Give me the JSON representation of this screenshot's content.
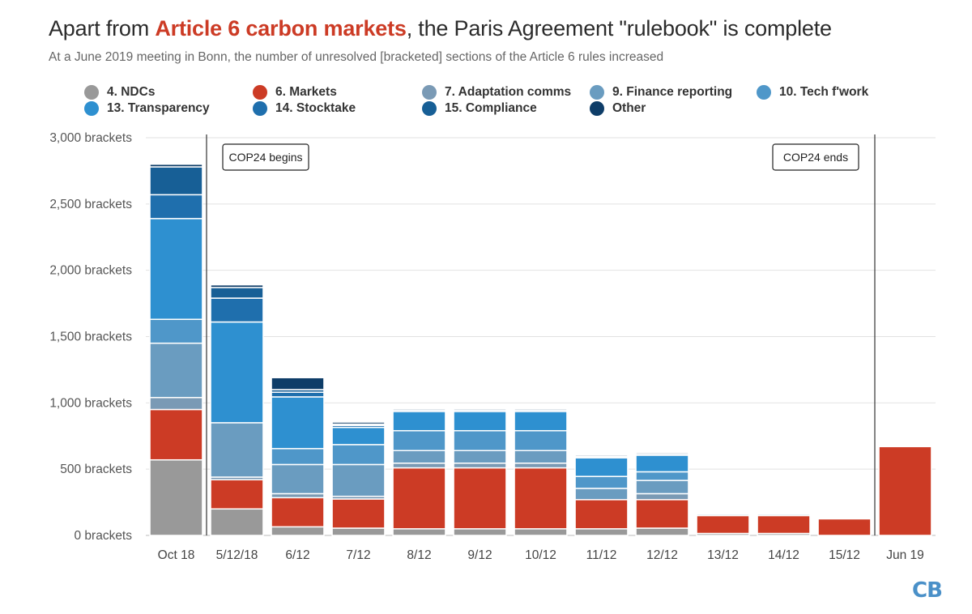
{
  "title": {
    "prefix": "Apart from ",
    "highlight": "Article 6 carbon markets",
    "suffix": ", the Paris Agreement \"rulebook\" is complete"
  },
  "subtitle": "At a June 2019 meeting in Bonn, the number of unresolved [bracketed] sections of the Article 6 rules increased",
  "logo": "CB",
  "chart_data": {
    "type": "bar",
    "stacked": true,
    "categories": [
      "Oct 18",
      "5/12/18",
      "6/12",
      "7/12",
      "8/12",
      "9/12",
      "10/12",
      "11/12",
      "12/12",
      "13/12",
      "14/12",
      "15/12",
      "Jun 19"
    ],
    "ylim": [
      0,
      3000
    ],
    "yticks": [
      0,
      500,
      1000,
      1500,
      2000,
      2500,
      3000
    ],
    "ytick_labels": [
      "0 brackets",
      "500 brackets",
      "1,000 brackets",
      "1,500 brackets",
      "2,000 brackets",
      "2,500 brackets",
      "3,000 brackets"
    ],
    "grid": true,
    "legend_position": "top",
    "series": [
      {
        "name": "4. NDCs",
        "color": "#999999",
        "values": [
          570,
          200,
          65,
          55,
          50,
          50,
          50,
          50,
          55,
          15,
          15,
          0,
          0
        ]
      },
      {
        "name": "6. Markets",
        "color": "#cc3b25",
        "values": [
          380,
          220,
          220,
          220,
          460,
          460,
          460,
          220,
          215,
          135,
          135,
          125,
          670
        ]
      },
      {
        "name": "7. Adaptation comms",
        "color": "#7a9ab5",
        "values": [
          90,
          20,
          30,
          20,
          35,
          35,
          35,
          0,
          45,
          0,
          0,
          0,
          0
        ]
      },
      {
        "name": "9. Finance reporting",
        "color": "#6a9cc0",
        "values": [
          410,
          410,
          220,
          240,
          95,
          95,
          95,
          85,
          100,
          0,
          0,
          0,
          0
        ]
      },
      {
        "name": "10. Tech f'work",
        "color": "#4f97c9",
        "values": [
          180,
          0,
          120,
          150,
          150,
          150,
          150,
          90,
          65,
          0,
          0,
          0,
          0
        ]
      },
      {
        "name": "13. Transparency",
        "color": "#2e90d0",
        "values": [
          760,
          760,
          390,
          130,
          145,
          145,
          145,
          140,
          125,
          10,
          10,
          0,
          0
        ]
      },
      {
        "name": "14. Stocktake",
        "color": "#1f6fad",
        "values": [
          180,
          180,
          35,
          15,
          0,
          0,
          0,
          0,
          0,
          0,
          0,
          0,
          0
        ]
      },
      {
        "name": "15. Compliance",
        "color": "#175f96",
        "values": [
          210,
          80,
          20,
          10,
          10,
          10,
          10,
          10,
          10,
          5,
          5,
          0,
          0
        ]
      },
      {
        "name": "Other",
        "color": "#0e3d68",
        "values": [
          20,
          20,
          90,
          15,
          10,
          10,
          10,
          10,
          10,
          5,
          5,
          0,
          0
        ]
      }
    ],
    "annotations": [
      {
        "text": "COP24 begins",
        "between": [
          "Oct 18",
          "5/12/18"
        ]
      },
      {
        "text": "COP24 ends",
        "between": [
          "15/12",
          "Jun 19"
        ]
      }
    ]
  }
}
